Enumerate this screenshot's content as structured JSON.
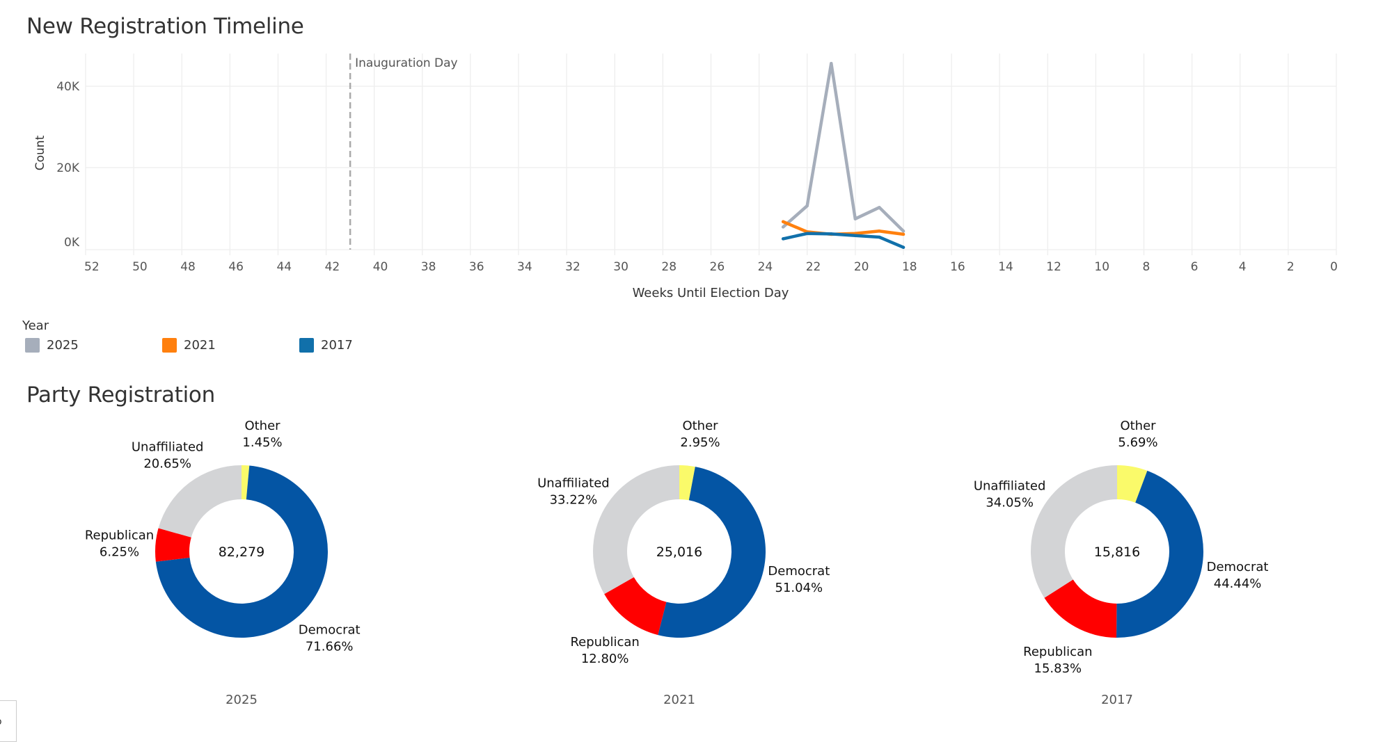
{
  "timeline": {
    "title": "New Registration Timeline",
    "legend": {
      "title": "Year",
      "items": [
        {
          "label": "2025",
          "color": "#A6AEBB"
        },
        {
          "label": "2021",
          "color": "#FF800E"
        },
        {
          "label": "2017",
          "color": "#1170AA"
        }
      ]
    }
  },
  "party": {
    "title": "Party Registration"
  },
  "corner_glyph": "o",
  "chart_data": [
    {
      "type": "line",
      "title": "New Registration Timeline",
      "xlabel": "Weeks Until Election Day",
      "ylabel": "Count",
      "xlim": [
        52,
        0
      ],
      "x_reversed": true,
      "ylim": [
        -2500,
        47000
      ],
      "x_ticks": [
        "52",
        "50",
        "48",
        "46",
        "44",
        "42",
        "40",
        "38",
        "36",
        "34",
        "32",
        "30",
        "28",
        "26",
        "24",
        "22",
        "20",
        "18",
        "16",
        "14",
        "12",
        "10",
        "8",
        "6",
        "4",
        "2",
        "0"
      ],
      "y_ticks": [
        {
          "value": 0,
          "label": "0K"
        },
        {
          "value": 20000,
          "label": "20K"
        },
        {
          "value": 40000,
          "label": "40K"
        }
      ],
      "grid": true,
      "annotation": {
        "x": 41,
        "label": "Inauguration Day",
        "style": "dashed"
      },
      "legend_position": "bottom-left",
      "x": [
        23,
        22,
        21,
        20,
        19,
        18
      ],
      "series": [
        {
          "name": "2025",
          "color": "#A6AEBB",
          "values": [
            5400,
            10600,
            45600,
            7400,
            10200,
            4400
          ]
        },
        {
          "name": "2021",
          "color": "#FF800E",
          "values": [
            6700,
            4200,
            3600,
            3800,
            4400,
            3600
          ]
        },
        {
          "name": "2017",
          "color": "#1170AA",
          "values": [
            2500,
            3800,
            3700,
            3300,
            2900,
            400
          ]
        }
      ]
    },
    {
      "type": "pie",
      "title": "Party Registration",
      "donut": true,
      "charts": [
        {
          "year": "2025",
          "total": "82,279",
          "slices": [
            {
              "label": "Other",
              "percent": 1.45,
              "display": "1.45%",
              "color": "#FAFA6A"
            },
            {
              "label": "Democrat",
              "percent": 71.66,
              "display": "71.66%",
              "color": "#0455A4"
            },
            {
              "label": "Republican",
              "percent": 6.25,
              "display": "6.25%",
              "color": "#FF0000"
            },
            {
              "label": "Unaffiliated",
              "percent": 20.65,
              "display": "20.65%",
              "color": "#D3D4D6"
            }
          ]
        },
        {
          "year": "2021",
          "total": "25,016",
          "slices": [
            {
              "label": "Other",
              "percent": 2.95,
              "display": "2.95%",
              "color": "#FAFA6A"
            },
            {
              "label": "Democrat",
              "percent": 51.04,
              "display": "51.04%",
              "color": "#0455A4"
            },
            {
              "label": "Republican",
              "percent": 12.8,
              "display": "12.80%",
              "color": "#FF0000"
            },
            {
              "label": "Unaffiliated",
              "percent": 33.22,
              "display": "33.22%",
              "color": "#D3D4D6"
            }
          ]
        },
        {
          "year": "2017",
          "total": "15,816",
          "slices": [
            {
              "label": "Other",
              "percent": 5.69,
              "display": "5.69%",
              "color": "#FAFA6A"
            },
            {
              "label": "Democrat",
              "percent": 44.44,
              "display": "44.44%",
              "color": "#0455A4"
            },
            {
              "label": "Republican",
              "percent": 15.83,
              "display": "15.83%",
              "color": "#FF0000"
            },
            {
              "label": "Unaffiliated",
              "percent": 34.05,
              "display": "34.05%",
              "color": "#D3D4D6"
            }
          ]
        }
      ]
    }
  ]
}
